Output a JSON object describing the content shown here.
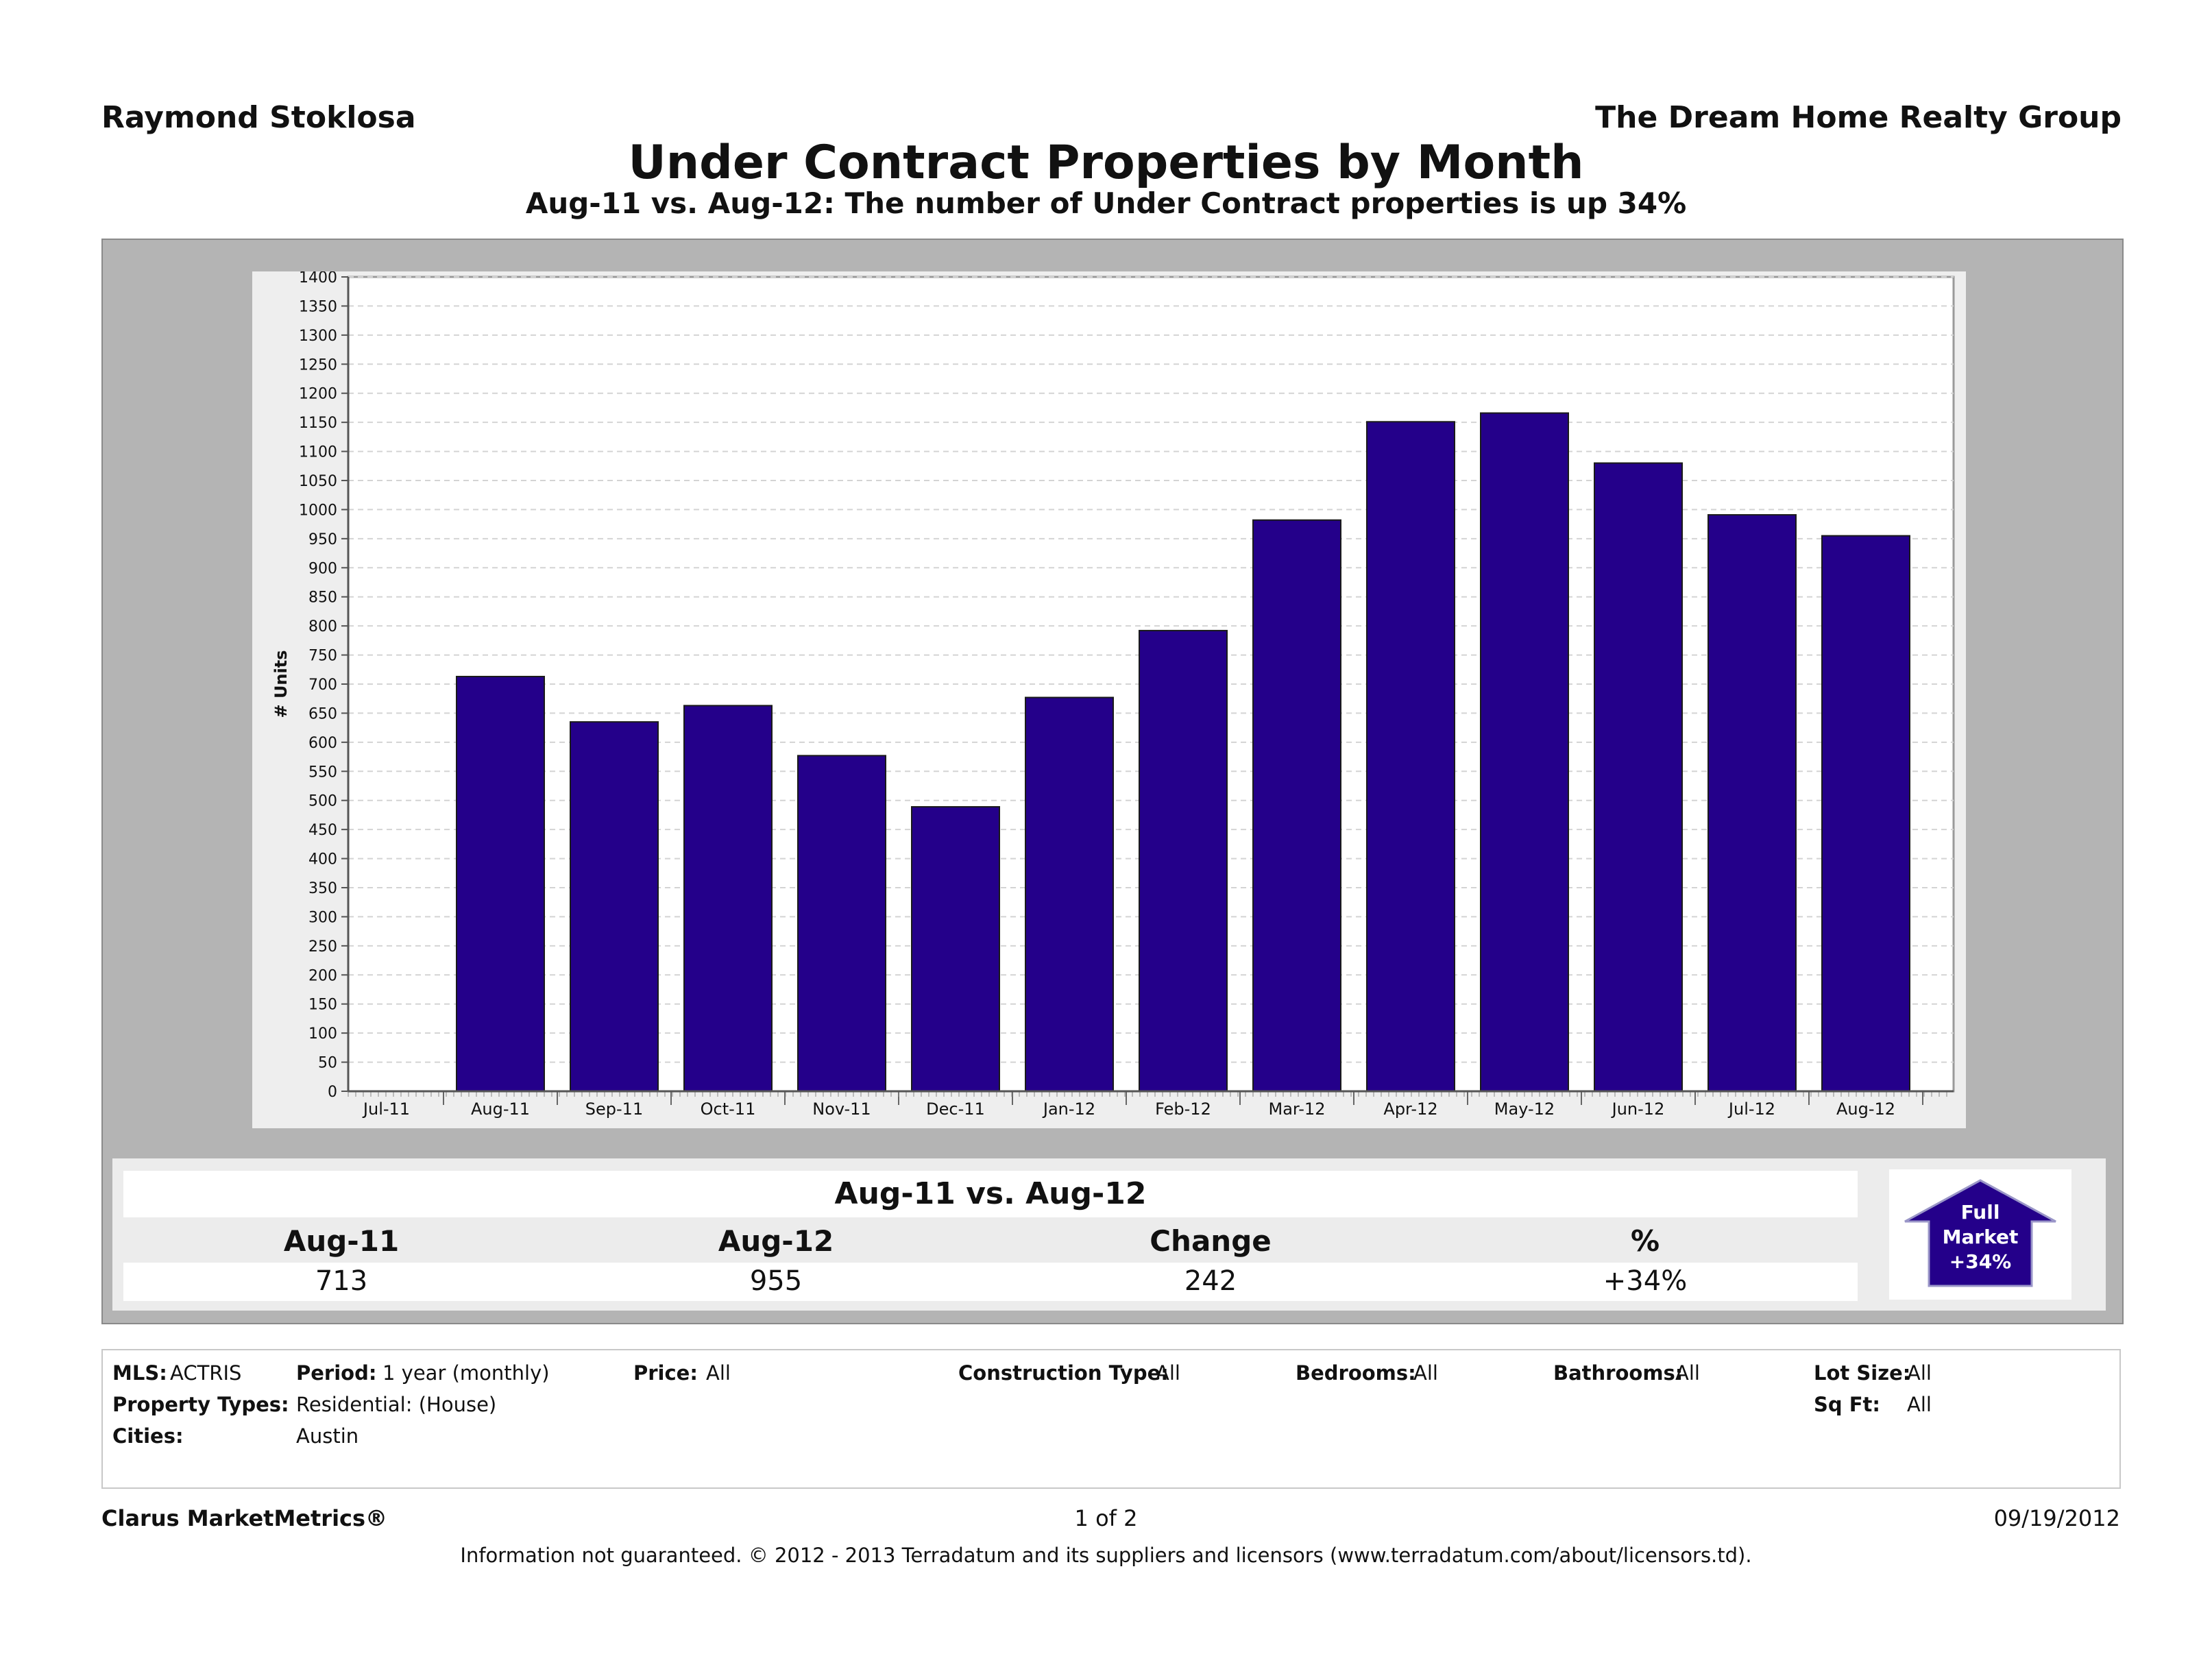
{
  "header": {
    "agent": "Raymond Stoklosa",
    "company": "The Dream Home Realty Group"
  },
  "chart_data": {
    "type": "bar",
    "title": "Under Contract Properties by Month",
    "subtitle": "Aug-11 vs. Aug-12: The number of Under Contract properties is up 34%",
    "ylabel": "# Units",
    "xlabel": "",
    "ylim": [
      0,
      1400
    ],
    "yticks": [
      0,
      50,
      100,
      150,
      200,
      250,
      300,
      350,
      400,
      450,
      500,
      550,
      600,
      650,
      700,
      750,
      800,
      850,
      900,
      950,
      1000,
      1050,
      1100,
      1150,
      1200,
      1250,
      1300,
      1350,
      1400
    ],
    "grid": true,
    "categories": [
      "Jul-11",
      "Aug-11",
      "Sep-11",
      "Oct-11",
      "Nov-11",
      "Dec-11",
      "Jan-12",
      "Feb-12",
      "Mar-12",
      "Apr-12",
      "May-12",
      "Jun-12",
      "Jul-12",
      "Aug-12"
    ],
    "values": [
      null,
      713,
      635,
      663,
      577,
      489,
      677,
      792,
      982,
      1151,
      1166,
      1080,
      991,
      955
    ],
    "color": "#24008a"
  },
  "summary": {
    "title": "Aug-11 vs. Aug-12",
    "headers": [
      "Aug-11",
      "Aug-12",
      "Change",
      "%"
    ],
    "values": [
      "713",
      "955",
      "242",
      "+34%"
    ],
    "badge": {
      "line1": "Full",
      "line2": "Market",
      "line3": "+34%",
      "color": "#24008a",
      "icon": "arrow-up-icon"
    }
  },
  "filters": {
    "mls_label": "MLS:",
    "mls_value": "ACTRIS",
    "period_label": "Period:",
    "period_value": "1 year (monthly)",
    "price_label": "Price:",
    "price_value": "All",
    "construction_label": "Construction Type:",
    "construction_value": "All",
    "bedrooms_label": "Bedrooms:",
    "bedrooms_value": "All",
    "bathrooms_label": "Bathrooms:",
    "bathrooms_value": "All",
    "lotsize_label": "Lot Size:",
    "lotsize_value": "All",
    "proptypes_label": "Property Types:",
    "proptypes_value": "Residential: (House)",
    "sqft_label": "Sq Ft:",
    "sqft_value": "All",
    "cities_label": "Cities:",
    "cities_value": "Austin"
  },
  "footer": {
    "brand": "Clarus MarketMetrics®",
    "page": "1 of 2",
    "date": "09/19/2012",
    "disclaimer": "Information not guaranteed.  © 2012 - 2013 Terradatum and its suppliers and licensors (www.terradatum.com/about/licensors.td)."
  }
}
